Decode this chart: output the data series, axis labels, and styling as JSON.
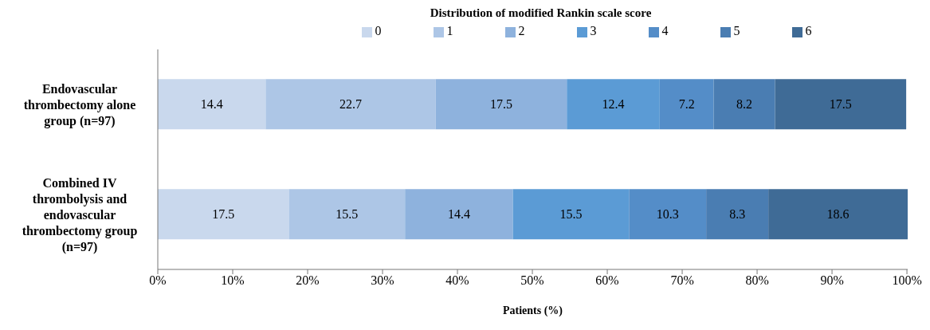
{
  "chart_data": {
    "type": "bar",
    "orientation": "horizontal",
    "stacked": true,
    "title": "Distribution of modified Rankin scale score",
    "xlabel": "Patients (%)",
    "categories": [
      "Endovascular thrombectomy alone group (n=97)",
      "Combined IV thrombolysis and endovascular thrombectomy group (n=97)"
    ],
    "series": [
      {
        "name": "0",
        "color": "#c9d8ed",
        "values": [
          14.4,
          17.5
        ]
      },
      {
        "name": "1",
        "color": "#adc6e6",
        "values": [
          22.7,
          15.5
        ]
      },
      {
        "name": "2",
        "color": "#8eb2dd",
        "values": [
          17.5,
          14.4
        ]
      },
      {
        "name": "3",
        "color": "#5b9bd5",
        "values": [
          12.4,
          15.5
        ]
      },
      {
        "name": "4",
        "color": "#548dc8",
        "values": [
          7.2,
          10.3
        ]
      },
      {
        "name": "5",
        "color": "#4a7db2",
        "values": [
          8.2,
          8.3
        ]
      },
      {
        "name": "6",
        "color": "#3f6b96",
        "values": [
          17.5,
          18.6
        ]
      }
    ],
    "xlim": [
      0,
      100.1
    ],
    "xticks": [
      {
        "value": 0,
        "label": "0%"
      },
      {
        "value": 10,
        "label": "10%"
      },
      {
        "value": 20,
        "label": "20%"
      },
      {
        "value": 30,
        "label": "30%"
      },
      {
        "value": 40,
        "label": "40%"
      },
      {
        "value": 50,
        "label": "50%"
      },
      {
        "value": 60,
        "label": "60%"
      },
      {
        "value": 70,
        "label": "70%"
      },
      {
        "value": 80,
        "label": "80%"
      },
      {
        "value": 90,
        "label": "90%"
      },
      {
        "value": 100,
        "label": "100%"
      }
    ],
    "data_labels": true,
    "legend": "top",
    "grid": false
  }
}
